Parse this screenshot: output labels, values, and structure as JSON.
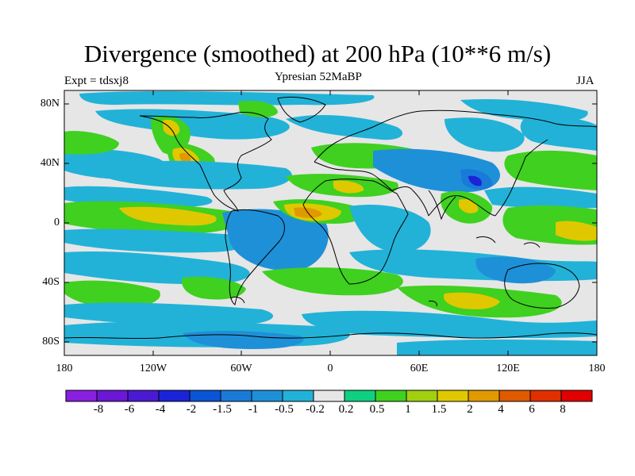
{
  "title": "Divergence (smoothed) at 200 hPa (10**6 m/s)",
  "subtitle_left": "Expt = tdsxj8",
  "subtitle_center": "Ypresian  52MaBP",
  "subtitle_right": "JJA",
  "x_axis": {
    "ticks": [
      "180",
      "120W",
      "60W",
      "0",
      "60E",
      "120E",
      "180"
    ]
  },
  "y_axis": {
    "ticks": [
      "80N",
      "40N",
      "0",
      "40S",
      "80S"
    ]
  },
  "colorbar": {
    "labels": [
      "-8",
      "-6",
      "-4",
      "-2",
      "-1.5",
      "-1",
      "-0.5",
      "-0.2",
      "0.2",
      "0.5",
      "1",
      "1.5",
      "2",
      "4",
      "6",
      "8"
    ],
    "colors": [
      "#8a1fe0",
      "#6a17d6",
      "#4a1ad2",
      "#1a24d6",
      "#0a55d6",
      "#1a7ad8",
      "#1e90d8",
      "#22b2d8",
      "#e6e6e6",
      "#0fd080",
      "#40d020",
      "#a0d010",
      "#e0c800",
      "#e09a00",
      "#e05a00",
      "#e03000",
      "#e00000"
    ]
  },
  "colors": {
    "neutral": "#e6e6e6",
    "convergence_light": "#22b2d8",
    "convergence_mid": "#1e90d8",
    "convergence_strong": "#1a7ad8",
    "divergence_light": "#0fd080",
    "divergence_mid": "#40d020",
    "divergence_strong": "#e0c800",
    "divergence_max": "#e09a00"
  }
}
